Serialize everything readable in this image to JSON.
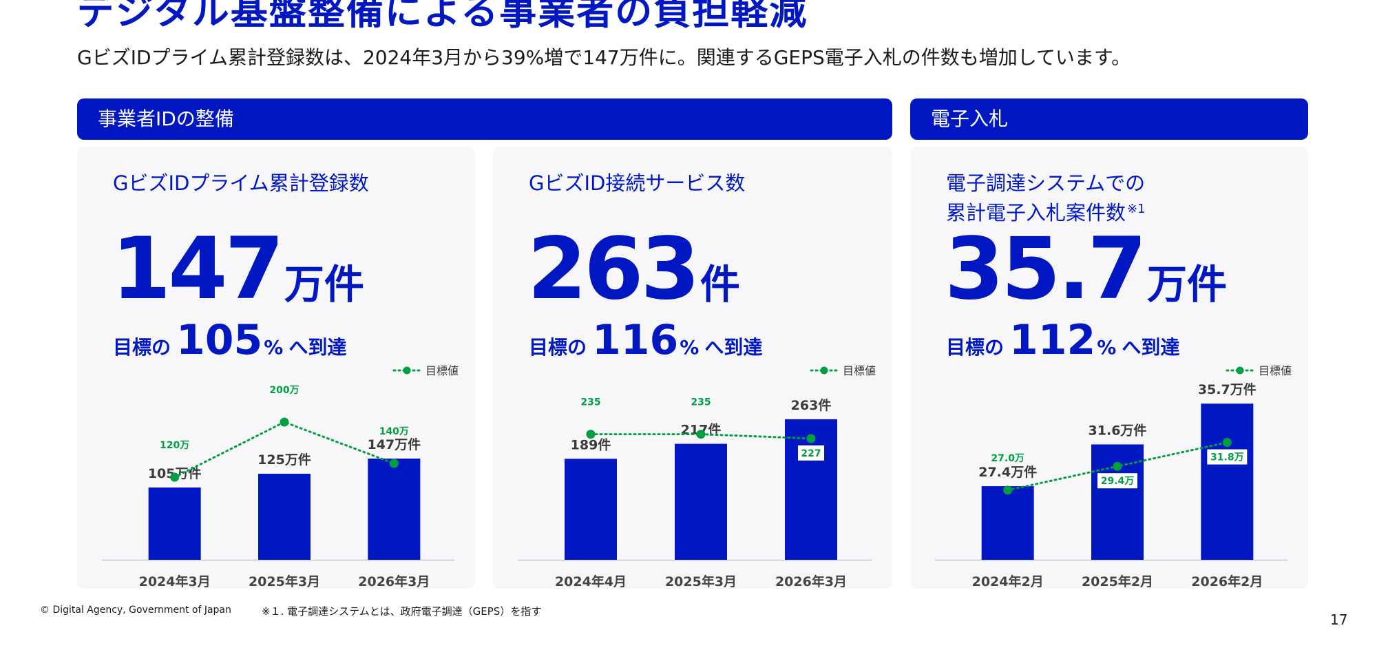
{
  "page": {
    "title": "デジタル基盤整備による事業者の負担軽減",
    "subtitle": "GビズIDプライム累計登録数は、2024年3月から39%増で147万件に。関連するGEPS電子入札の件数も増加しています。",
    "page_number": "17"
  },
  "sections": [
    {
      "label": "事業者IDの整備"
    },
    {
      "label": "電子入札"
    }
  ],
  "colors": {
    "primary": "#0017c1",
    "target": "#00a040",
    "panel": "#f7f7fa"
  },
  "cards": [
    {
      "title_line1": "GビズIDプライム累計登録数",
      "title_line2": "",
      "title_note": "",
      "value": "147",
      "unit": "万件",
      "achieve_prefix": "目標の",
      "achieve_value": "105",
      "achieve_pct": "%",
      "achieve_suffix": "へ到達"
    },
    {
      "title_line1": "GビズID接続サービス数",
      "title_line2": "",
      "title_note": "",
      "value": "263",
      "unit": "件",
      "achieve_prefix": "目標の",
      "achieve_value": "116",
      "achieve_pct": "%",
      "achieve_suffix": "へ到達"
    },
    {
      "title_line1": "電子調達システムでの",
      "title_line2": "累計電子入札案件数",
      "title_note": "※1",
      "value": "35.7",
      "unit": "万件",
      "achieve_prefix": "目標の",
      "achieve_value": "112",
      "achieve_pct": "%",
      "achieve_suffix": "へ到達"
    }
  ],
  "chart_data": [
    {
      "type": "bar",
      "legend": "目標値",
      "categories": [
        "2024年3月",
        "2025年3月",
        "2026年3月"
      ],
      "values": [
        105,
        125,
        147
      ],
      "value_labels": [
        "105万件",
        "125万件",
        "147万件"
      ],
      "target": {
        "name": "目標値",
        "values": [
          120,
          200,
          140
        ],
        "labels": [
          "120万",
          "200万",
          "140万"
        ]
      },
      "ylim": [
        0,
        260
      ]
    },
    {
      "type": "bar",
      "legend": "目標値",
      "categories": [
        "2024年4月",
        "2025年3月",
        "2026年3月"
      ],
      "values": [
        189,
        217,
        263
      ],
      "value_labels": [
        "189件",
        "217件",
        "263件"
      ],
      "target": {
        "name": "目標値",
        "values": [
          235,
          235,
          227
        ],
        "labels": [
          "235",
          "235",
          "227"
        ]
      },
      "ylim": [
        0,
        335
      ]
    },
    {
      "type": "bar",
      "legend": "目標値",
      "categories": [
        "2024年2月",
        "2025年2月",
        "2026年2月"
      ],
      "values": [
        27.4,
        31.6,
        35.7
      ],
      "value_labels": [
        "27.4万件",
        "31.6万件",
        "35.7万件"
      ],
      "target": {
        "name": "目標値",
        "values": [
          27.0,
          29.4,
          31.8
        ],
        "labels": [
          "27.0万",
          "29.4万",
          "31.8万"
        ]
      },
      "ylim": [
        20,
        38
      ]
    }
  ],
  "footer": {
    "copyright": "© Digital Agency, Government of Japan",
    "note": "※１. 電子調達システムとは、政府電子調達（GEPS）を指す"
  }
}
